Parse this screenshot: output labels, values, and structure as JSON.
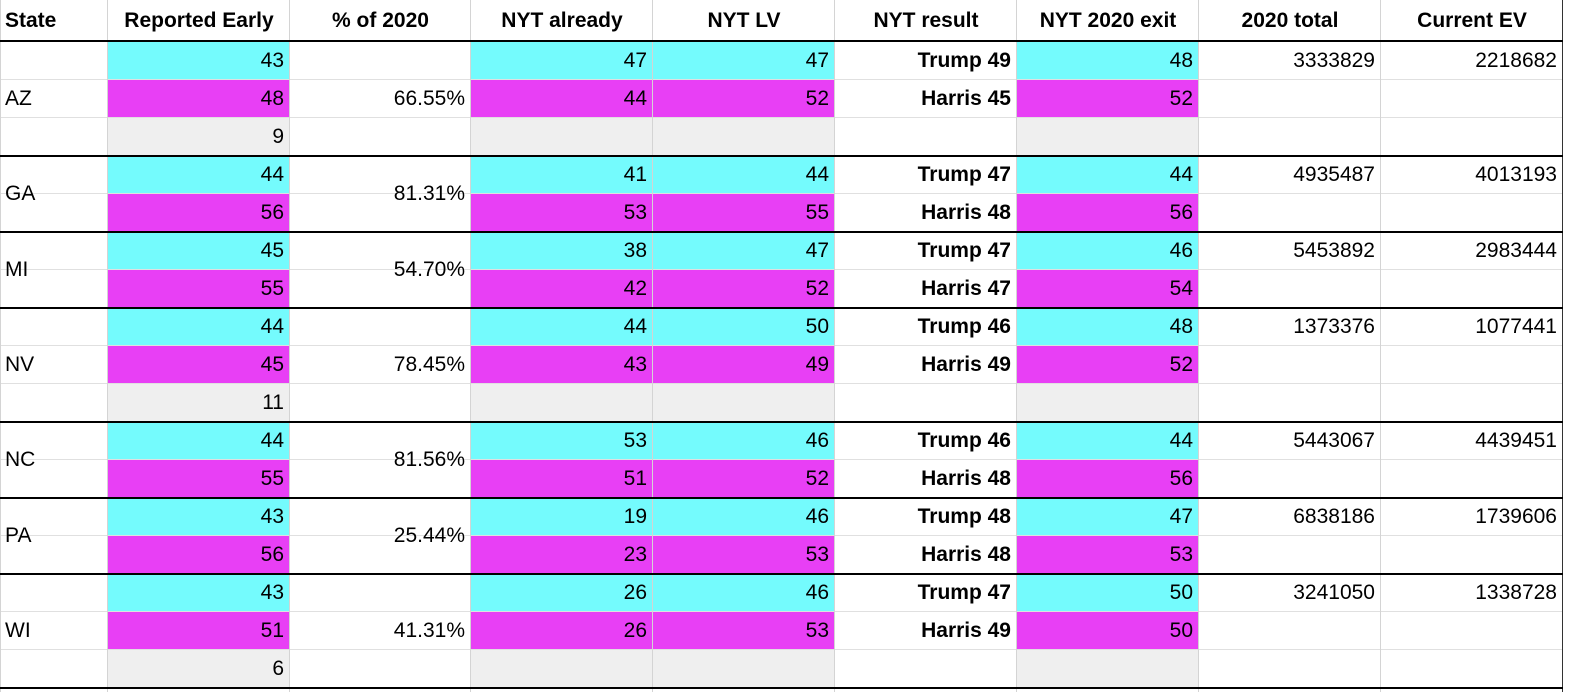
{
  "headers": [
    "State",
    "Reported Early",
    "% of 2020",
    "NYT already",
    "NYT LV",
    "NYT result",
    "NYT 2020 exit",
    "2020 total",
    "Current EV"
  ],
  "states": [
    {
      "state": "AZ",
      "reported_early": [
        43,
        48,
        9
      ],
      "pct_of_2020": "66.55%",
      "nyt_already": [
        47,
        44
      ],
      "nyt_lv": [
        47,
        52
      ],
      "nyt_result": [
        "Trump 49",
        "Harris 45"
      ],
      "nyt_2020_exit": [
        48,
        52
      ],
      "total_2020": 3333829,
      "current_ev": 2218682
    },
    {
      "state": "GA",
      "reported_early": [
        44,
        56
      ],
      "pct_of_2020": "81.31%",
      "nyt_already": [
        41,
        53
      ],
      "nyt_lv": [
        44,
        55
      ],
      "nyt_result": [
        "Trump 47",
        "Harris 48"
      ],
      "nyt_2020_exit": [
        44,
        56
      ],
      "total_2020": 4935487,
      "current_ev": 4013193
    },
    {
      "state": "MI",
      "reported_early": [
        45,
        55
      ],
      "pct_of_2020": "54.70%",
      "nyt_already": [
        38,
        42
      ],
      "nyt_lv": [
        47,
        52
      ],
      "nyt_result": [
        "Trump 47",
        "Harris 47"
      ],
      "nyt_2020_exit": [
        46,
        54
      ],
      "total_2020": 5453892,
      "current_ev": 2983444
    },
    {
      "state": "NV",
      "reported_early": [
        44,
        45,
        11
      ],
      "pct_of_2020": "78.45%",
      "nyt_already": [
        44,
        43
      ],
      "nyt_lv": [
        50,
        49
      ],
      "nyt_result": [
        "Trump 46",
        "Harris 49"
      ],
      "nyt_2020_exit": [
        48,
        52
      ],
      "total_2020": 1373376,
      "current_ev": 1077441
    },
    {
      "state": "NC",
      "reported_early": [
        44,
        55
      ],
      "pct_of_2020": "81.56%",
      "nyt_already": [
        53,
        51
      ],
      "nyt_lv": [
        46,
        52
      ],
      "nyt_result": [
        "Trump 46",
        "Harris 48"
      ],
      "nyt_2020_exit": [
        44,
        56
      ],
      "total_2020": 5443067,
      "current_ev": 4439451
    },
    {
      "state": "PA",
      "reported_early": [
        43,
        56
      ],
      "pct_of_2020": "25.44%",
      "nyt_already": [
        19,
        23
      ],
      "nyt_lv": [
        46,
        53
      ],
      "nyt_result": [
        "Trump 48",
        "Harris 48"
      ],
      "nyt_2020_exit": [
        47,
        53
      ],
      "total_2020": 6838186,
      "current_ev": 1739606
    },
    {
      "state": "WI",
      "reported_early": [
        43,
        51,
        6
      ],
      "pct_of_2020": "41.31%",
      "nyt_already": [
        26,
        26
      ],
      "nyt_lv": [
        46,
        53
      ],
      "nyt_result": [
        "Trump 47",
        "Harris 49"
      ],
      "nyt_2020_exit": [
        50,
        50
      ],
      "total_2020": 3241050,
      "current_ev": 1338728
    }
  ]
}
